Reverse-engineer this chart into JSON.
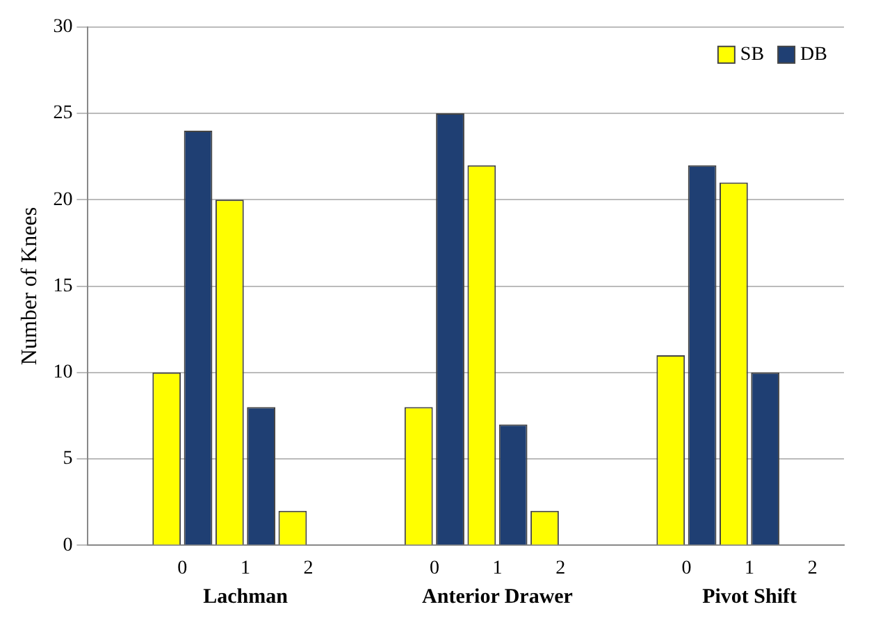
{
  "chart_data": {
    "type": "bar",
    "ylabel": "Number of Knees",
    "categories": [
      null,
      "0",
      "1",
      "2",
      null,
      "0",
      "1",
      "2",
      null,
      "0",
      "1",
      "2"
    ],
    "series": [
      {
        "name": "SB",
        "color": "#ffff00",
        "values": [
          null,
          10,
          20,
          2,
          null,
          8,
          22,
          2,
          null,
          11,
          21,
          0
        ]
      },
      {
        "name": "DB",
        "color": "#1f3f73",
        "values": [
          null,
          24,
          8,
          0,
          null,
          25,
          7,
          0,
          null,
          22,
          10,
          0
        ]
      }
    ],
    "ylim": [
      0,
      30
    ],
    "yticks": [
      0,
      5,
      10,
      15,
      20,
      25,
      30
    ],
    "grid": "y",
    "legend": "top right",
    "annotations": [
      "Lachman",
      "Anterior Drawer",
      "Pivot Shift"
    ]
  }
}
